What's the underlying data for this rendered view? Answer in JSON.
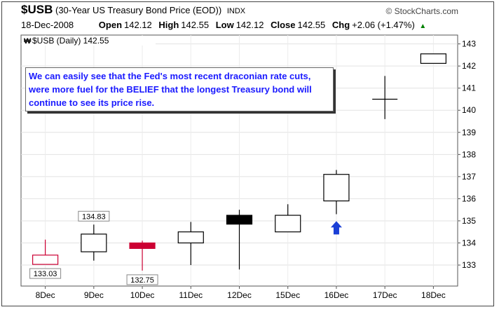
{
  "header": {
    "symbol": "$USB",
    "description": "(30-Year US Treasury Bond Price (EOD))",
    "exchange": "INDX",
    "brand": "© StockCharts.com",
    "date": "18-Dec-2008",
    "open_label": "Open",
    "open": "142.12",
    "high_label": "High",
    "high": "142.55",
    "low_label": "Low",
    "low": "142.12",
    "close_label": "Close",
    "close": "142.55",
    "chg_label": "Chg",
    "chg": "+2.06 (+1.47%)",
    "up_icon": "triangle-up-icon"
  },
  "legend": {
    "text": "$USB (Daily) 142.55",
    "icon": "series-marker-icon"
  },
  "annotation": "We can easily see that the Fed's most recent draconian rate cuts, were more fuel for the BELIEF that the longest Treasury bond will continue to see its price rise.",
  "chart_data": {
    "type": "candlestick",
    "x": [
      "8Dec",
      "9Dec",
      "10Dec",
      "11Dec",
      "12Dec",
      "15Dec",
      "16Dec",
      "17Dec",
      "18Dec"
    ],
    "series": [
      {
        "values": [
          {
            "open": 133.03,
            "high": 134.15,
            "low": 133.03,
            "close": 133.45,
            "color": "#cc0033",
            "filled": false
          },
          {
            "open": 133.6,
            "high": 134.83,
            "low": 133.2,
            "close": 134.4,
            "color": "#000000",
            "filled": false
          },
          {
            "open": 134.0,
            "high": 134.1,
            "low": 132.75,
            "close": 133.75,
            "color": "#cc0033",
            "filled": true
          },
          {
            "open": 134.0,
            "high": 134.95,
            "low": 133.0,
            "close": 134.5,
            "color": "#000000",
            "filled": false
          },
          {
            "open": 135.25,
            "high": 135.5,
            "low": 132.8,
            "close": 134.85,
            "color": "#000000",
            "filled": true
          },
          {
            "open": 134.5,
            "high": 135.75,
            "low": 134.5,
            "close": 135.25,
            "color": "#000000",
            "filled": false
          },
          {
            "open": 135.9,
            "high": 137.3,
            "low": 135.3,
            "close": 137.1,
            "color": "#000000",
            "filled": false
          },
          {
            "open": 140.5,
            "high": 141.55,
            "low": 139.6,
            "close": 140.5,
            "color": "#000000",
            "filled": false
          },
          {
            "open": 142.12,
            "high": 142.55,
            "low": 142.12,
            "close": 142.55,
            "color": "#000000",
            "filled": false
          }
        ]
      }
    ],
    "y_ticks": [
      133,
      134,
      135,
      136,
      137,
      138,
      139,
      140,
      141,
      142,
      143
    ],
    "ylim": [
      132.05,
      143.4
    ],
    "grid": true,
    "data_labels": [
      {
        "index": 0,
        "value": "133.03",
        "position": "below"
      },
      {
        "index": 1,
        "value": "134.83",
        "position": "above"
      },
      {
        "index": 2,
        "value": "132.75",
        "position": "below"
      }
    ],
    "marker": {
      "index": 6,
      "value": 134.7,
      "shape": "arrow-up",
      "color": "#1a3fd6"
    }
  }
}
